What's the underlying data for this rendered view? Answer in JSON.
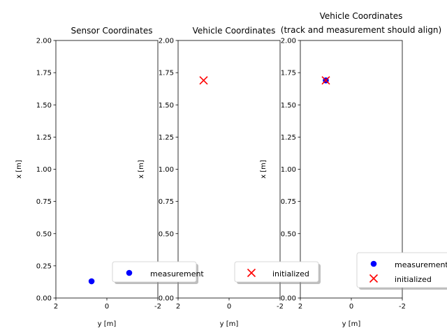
{
  "chart_data": [
    {
      "type": "scatter",
      "title": "Sensor Coordinates",
      "xlabel": "y [m]",
      "ylabel": "x [m]",
      "xlim": [
        2,
        -2
      ],
      "ylim": [
        0,
        2
      ],
      "xticks": [
        "2",
        "0",
        "-2"
      ],
      "yticks": [
        "0.00",
        "0.25",
        "0.50",
        "0.75",
        "1.00",
        "1.25",
        "1.50",
        "1.75",
        "2.00"
      ],
      "legend": "lower-right",
      "series": [
        {
          "name": "measurement",
          "marker": "o",
          "color": "#0000ff",
          "x": [
            0.6
          ],
          "y": [
            0.13
          ]
        }
      ]
    },
    {
      "type": "scatter",
      "title": "Vehicle Coordinates",
      "xlabel": "y [m]",
      "ylabel": "x [m]",
      "xlim": [
        2,
        -2
      ],
      "ylim": [
        0,
        2
      ],
      "xticks": [
        "2",
        "0",
        "-2"
      ],
      "yticks": [
        "0.00",
        "0.25",
        "0.50",
        "0.75",
        "1.00",
        "1.25",
        "1.50",
        "1.75",
        "2.00"
      ],
      "legend": "lower-right",
      "series": [
        {
          "name": "initialized",
          "marker": "x",
          "color": "#ff0000",
          "x": [
            1.0
          ],
          "y": [
            1.69
          ]
        }
      ]
    },
    {
      "type": "scatter",
      "title": "Vehicle Coordinates",
      "subtitle": "(track and measurement should align)",
      "xlabel": "y [m]",
      "ylabel": "x [m]",
      "xlim": [
        2,
        -2
      ],
      "ylim": [
        0,
        2
      ],
      "xticks": [
        "2",
        "0",
        "-2"
      ],
      "yticks": [
        "0.00",
        "0.25",
        "0.50",
        "0.75",
        "1.00",
        "1.25",
        "1.50",
        "1.75",
        "2.00"
      ],
      "legend": "lower-right",
      "series": [
        {
          "name": "measurement",
          "marker": "o",
          "color": "#0000ff",
          "x": [
            1.0
          ],
          "y": [
            1.69
          ]
        },
        {
          "name": "initialized",
          "marker": "x",
          "color": "#ff0000",
          "x": [
            1.0
          ],
          "y": [
            1.69
          ]
        }
      ]
    }
  ]
}
